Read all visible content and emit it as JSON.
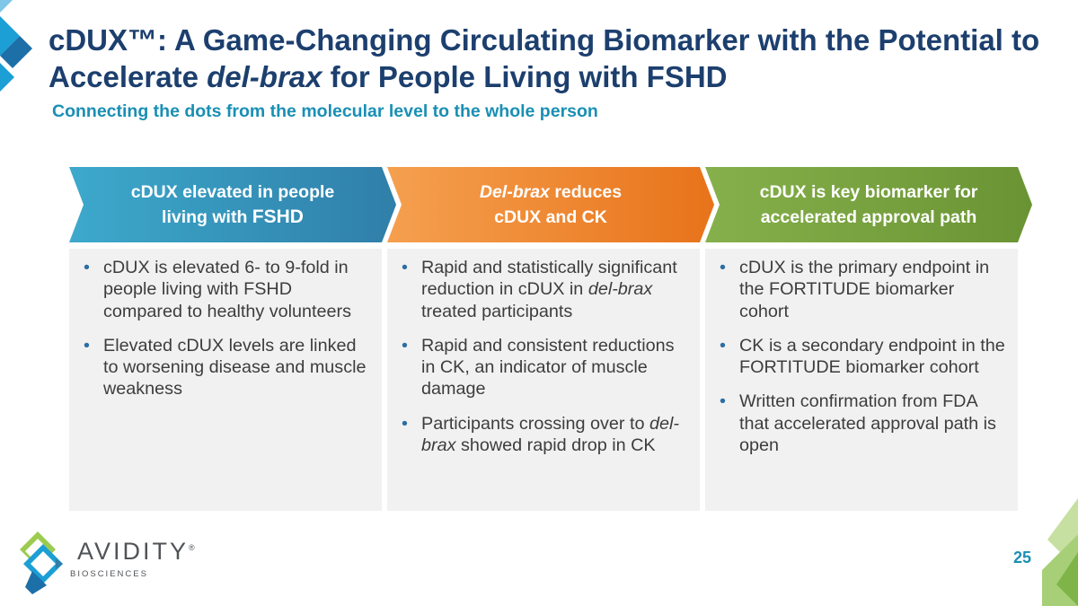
{
  "title": {
    "part1": "cDUX™: A Game-Changing Circulating Biomarker with the Potential to Accelerate ",
    "italic": "del-brax",
    "part2": " for People Living with FSHD"
  },
  "subtitle": "Connecting the dots from the molecular level to the whole person",
  "columns": [
    {
      "header": {
        "line1": "cDUX elevated in people",
        "line2a": "living with ",
        "line2b": "FSHD"
      },
      "color": "#3a8fb7",
      "bullets": [
        "cDUX is elevated 6- to 9-fold in people living with FSHD compared to healthy volunteers",
        "Elevated cDUX levels are linked to worsening disease and muscle weakness"
      ]
    },
    {
      "header": {
        "italic": "Del-brax",
        "line1rest": " reduces",
        "line2": "cDUX and CK"
      },
      "color": "#ef7f1a",
      "bullets": [
        {
          "before": "Rapid and statistically significant reduction in cDUX in ",
          "italic": "del-brax",
          "after": " treated participants"
        },
        "Rapid and consistent reductions in CK, an indicator of muscle damage",
        {
          "before": "Participants crossing over to ",
          "italic": "del-brax",
          "after": " showed rapid drop in CK"
        }
      ]
    },
    {
      "header": {
        "line1": "cDUX is key biomarker for",
        "line2": "accelerated approval path"
      },
      "color": "#6e9a35",
      "bullets": [
        "cDUX is the primary endpoint in the FORTITUDE biomarker cohort",
        "CK is a secondary endpoint in the FORTITUDE biomarker cohort",
        "Written confirmation from FDA that accelerated approval path is open"
      ]
    }
  ],
  "bullet_char": "•",
  "logo": {
    "name": "AVIDITY",
    "reg": "®",
    "sub": "BIOSCIENCES"
  },
  "page_number": "25"
}
